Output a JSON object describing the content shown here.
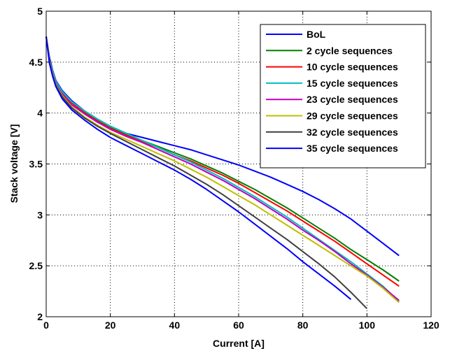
{
  "chart_data": {
    "type": "line",
    "xlabel": "Current [A]",
    "ylabel": "Stack voltage [V]",
    "xlim": [
      0,
      120
    ],
    "ylim": [
      2,
      5
    ],
    "xticks": [
      0,
      20,
      40,
      60,
      80,
      100,
      120
    ],
    "yticks": [
      2,
      2.5,
      3,
      3.5,
      4,
      4.5,
      5
    ],
    "xtick_labels": [
      "0",
      "20",
      "40",
      "60",
      "80",
      "100",
      "120"
    ],
    "ytick_labels": [
      "2",
      "2.5",
      "3",
      "3.5",
      "4",
      "4.5",
      "5"
    ],
    "grid": true,
    "legend_position": "top-right",
    "series": [
      {
        "name": "BoL",
        "color": "#0000ff",
        "x": [
          0,
          1,
          2,
          3,
          5,
          8,
          12,
          16,
          20,
          25,
          30,
          35,
          40,
          45,
          50,
          55,
          60,
          65,
          70,
          75,
          80,
          85,
          90,
          95,
          100,
          105,
          110
        ],
        "y": [
          4.75,
          4.55,
          4.42,
          4.32,
          4.22,
          4.12,
          4.02,
          3.94,
          3.87,
          3.8,
          3.76,
          3.72,
          3.68,
          3.64,
          3.59,
          3.54,
          3.49,
          3.43,
          3.37,
          3.3,
          3.23,
          3.15,
          3.06,
          2.96,
          2.84,
          2.72,
          2.6
        ]
      },
      {
        "name": "2 cycle sequences",
        "color": "#008000",
        "x": [
          0,
          1,
          2,
          3,
          5,
          8,
          12,
          16,
          20,
          25,
          30,
          35,
          40,
          45,
          50,
          55,
          60,
          65,
          70,
          75,
          80,
          85,
          90,
          95,
          100,
          105,
          110
        ],
        "y": [
          4.75,
          4.53,
          4.4,
          4.31,
          4.2,
          4.1,
          4.01,
          3.93,
          3.86,
          3.79,
          3.73,
          3.67,
          3.61,
          3.55,
          3.48,
          3.41,
          3.33,
          3.25,
          3.16,
          3.07,
          2.97,
          2.87,
          2.77,
          2.66,
          2.56,
          2.46,
          2.35
        ]
      },
      {
        "name": "10 cycle sequences",
        "color": "#ff0000",
        "x": [
          0,
          1,
          2,
          3,
          5,
          8,
          12,
          16,
          20,
          25,
          30,
          35,
          40,
          45,
          50,
          55,
          60,
          65,
          70,
          75,
          80,
          85,
          90,
          95,
          100,
          105,
          110
        ],
        "y": [
          4.75,
          4.52,
          4.4,
          4.3,
          4.2,
          4.1,
          4.0,
          3.92,
          3.85,
          3.78,
          3.72,
          3.66,
          3.59,
          3.53,
          3.46,
          3.39,
          3.31,
          3.22,
          3.13,
          3.04,
          2.94,
          2.84,
          2.74,
          2.63,
          2.52,
          2.41,
          2.3
        ]
      },
      {
        "name": "15 cycle sequences",
        "color": "#00bfbf",
        "x": [
          0,
          1,
          2,
          3,
          5,
          8,
          12,
          16,
          20,
          25,
          30,
          35,
          40,
          45,
          50,
          55,
          60,
          65,
          70,
          75,
          80,
          85,
          90,
          95,
          100,
          105,
          110
        ],
        "y": [
          4.75,
          4.52,
          4.41,
          4.31,
          4.21,
          4.11,
          4.02,
          3.94,
          3.87,
          3.8,
          3.73,
          3.66,
          3.59,
          3.52,
          3.44,
          3.36,
          3.27,
          3.18,
          3.08,
          2.98,
          2.87,
          2.76,
          2.65,
          2.54,
          2.42,
          2.3,
          2.15
        ]
      },
      {
        "name": "23 cycle sequences",
        "color": "#bf00bf",
        "x": [
          0,
          1,
          2,
          3,
          5,
          8,
          12,
          16,
          20,
          25,
          30,
          35,
          40,
          45,
          50,
          55,
          60,
          65,
          70,
          75,
          80,
          85,
          90,
          95,
          100,
          105,
          110
        ],
        "y": [
          4.75,
          4.51,
          4.39,
          4.29,
          4.18,
          4.08,
          3.99,
          3.91,
          3.84,
          3.77,
          3.71,
          3.64,
          3.57,
          3.5,
          3.42,
          3.34,
          3.25,
          3.16,
          3.06,
          2.96,
          2.85,
          2.75,
          2.64,
          2.52,
          2.41,
          2.29,
          2.16
        ]
      },
      {
        "name": "29 cycle sequences",
        "color": "#bfbf00",
        "x": [
          0,
          1,
          2,
          3,
          5,
          8,
          12,
          16,
          20,
          25,
          30,
          35,
          40,
          45,
          50,
          55,
          60,
          65,
          70,
          75,
          80,
          85,
          90,
          95,
          100,
          105,
          110
        ],
        "y": [
          4.75,
          4.51,
          4.38,
          4.28,
          4.17,
          4.06,
          3.96,
          3.88,
          3.81,
          3.74,
          3.67,
          3.6,
          3.53,
          3.45,
          3.37,
          3.28,
          3.19,
          3.1,
          3.0,
          2.9,
          2.8,
          2.7,
          2.6,
          2.5,
          2.4,
          2.28,
          2.14
        ]
      },
      {
        "name": "32 cycle sequences",
        "color": "#404040",
        "x": [
          0,
          1,
          2,
          3,
          5,
          8,
          12,
          16,
          20,
          25,
          30,
          35,
          40,
          45,
          50,
          55,
          60,
          65,
          70,
          75,
          80,
          85,
          90,
          95,
          100
        ],
        "y": [
          4.75,
          4.5,
          4.37,
          4.27,
          4.16,
          4.05,
          3.95,
          3.87,
          3.8,
          3.72,
          3.64,
          3.56,
          3.48,
          3.39,
          3.3,
          3.2,
          3.09,
          2.98,
          2.87,
          2.76,
          2.64,
          2.52,
          2.39,
          2.24,
          2.08
        ]
      },
      {
        "name": "35 cycle sequences",
        "color": "#0000ff",
        "x": [
          0,
          1,
          2,
          3,
          5,
          8,
          12,
          16,
          20,
          25,
          30,
          35,
          40,
          45,
          50,
          55,
          60,
          65,
          70,
          75,
          80,
          85,
          90,
          95
        ],
        "y": [
          4.75,
          4.49,
          4.36,
          4.26,
          4.14,
          4.03,
          3.93,
          3.84,
          3.76,
          3.68,
          3.6,
          3.52,
          3.44,
          3.35,
          3.25,
          3.14,
          3.03,
          2.91,
          2.79,
          2.67,
          2.54,
          2.42,
          2.3,
          2.17
        ]
      }
    ]
  }
}
